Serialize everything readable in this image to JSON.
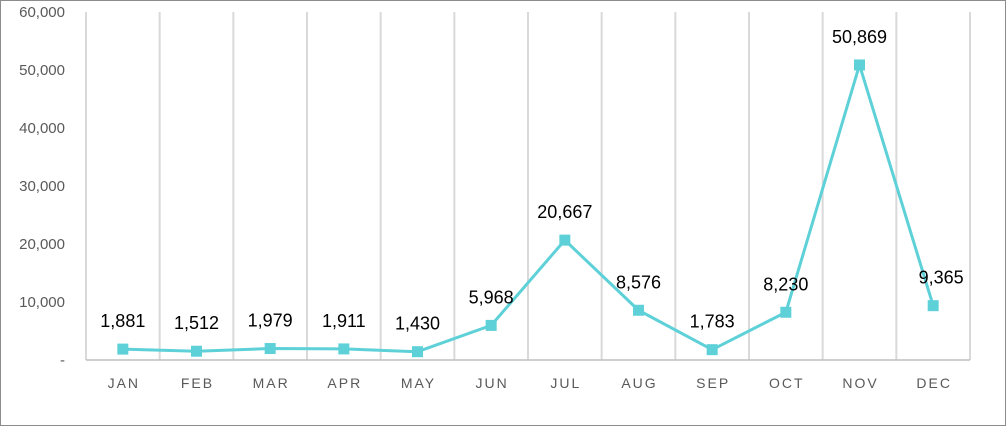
{
  "chart_data": {
    "type": "line",
    "title": "",
    "xlabel": "",
    "ylabel": "",
    "categories": [
      "JAN",
      "FEB",
      "MAR",
      "APR",
      "MAY",
      "JUN",
      "JUL",
      "AUG",
      "SEP",
      "OCT",
      "NOV",
      "DEC"
    ],
    "values": [
      1881,
      1512,
      1979,
      1911,
      1430,
      5968,
      20667,
      8576,
      1783,
      8230,
      50869,
      9365
    ],
    "value_labels": [
      "1,881",
      "1,512",
      "1,979",
      "1,911",
      "1,430",
      "5,968",
      "20,667",
      "8,576",
      "1,783",
      "8,230",
      "50,869",
      "9,365"
    ],
    "ylim": [
      0,
      60000
    ],
    "yticks": [
      0,
      10000,
      20000,
      30000,
      40000,
      50000,
      60000
    ],
    "ytick_labels": [
      "-",
      "10,000",
      "20,000",
      "30,000",
      "40,000",
      "50,000",
      "60,000"
    ],
    "grid": "vertical",
    "legend": "none",
    "marker": "square",
    "colors": {
      "series": "#5ed1d8",
      "grid": "#d9d9d9",
      "axis": "#bfbfbf"
    }
  }
}
